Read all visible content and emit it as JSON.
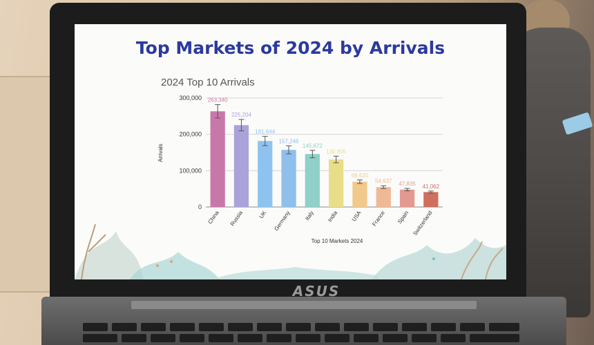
{
  "slide": {
    "title": "Top Markets of 2024 by Arrivals"
  },
  "laptop": {
    "brand": "ASUS"
  },
  "chart_data": {
    "type": "bar",
    "title": "2024 Top 10 Arrivals",
    "xlabel": "Top 10 Markets 2024",
    "ylabel": "Arrivals",
    "ylim": [
      0,
      300000
    ],
    "y_ticks": [
      "0",
      "100,000",
      "200,000",
      "300,000"
    ],
    "grid": true,
    "error_bars": true,
    "categories": [
      "China",
      "Russia",
      "UK",
      "Germany",
      "Italy",
      "India",
      "USA",
      "France",
      "Spain",
      "Switzerland"
    ],
    "values": [
      263340,
      225204,
      181644,
      157246,
      145672,
      130805,
      69620,
      54637,
      47835,
      41062
    ],
    "data_labels": [
      "263,340",
      "225,204",
      "181,644",
      "157,246",
      "145,672",
      "130,805",
      "69,620",
      "54,637",
      "47,835",
      "41,062"
    ],
    "colors": [
      "#c878a8",
      "#a9a3d9",
      "#8fc3ef",
      "#8fbfec",
      "#8fd0c8",
      "#e9de88",
      "#f2c98c",
      "#f0b996",
      "#e29a90",
      "#cf6f5e"
    ]
  }
}
